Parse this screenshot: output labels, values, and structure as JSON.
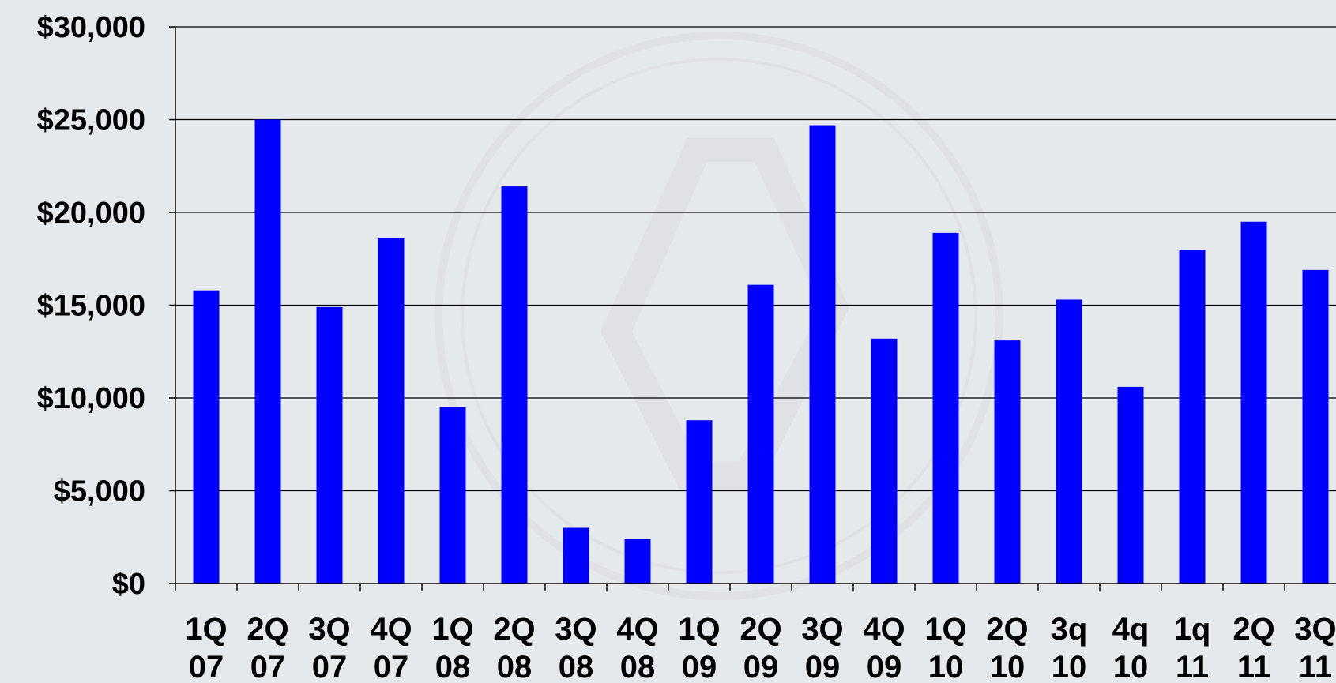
{
  "chart_data": {
    "type": "bar",
    "title": "",
    "xlabel": "",
    "ylabel": "",
    "ylim": [
      0,
      30000
    ],
    "grid": true,
    "legend": "none",
    "bar_color": "#0000ff",
    "gridline_color": "#000000",
    "background_color": "#e6e9ec",
    "y_ticks": [
      {
        "value": 0,
        "label": "$0"
      },
      {
        "value": 5000,
        "label": "$5,000"
      },
      {
        "value": 10000,
        "label": "$10,000"
      },
      {
        "value": 15000,
        "label": "$15,000"
      },
      {
        "value": 20000,
        "label": "$20,000"
      },
      {
        "value": 25000,
        "label": "$25,000"
      },
      {
        "value": 30000,
        "label": "$30,000"
      }
    ],
    "categories": [
      {
        "line1": "1Q",
        "line2": "07"
      },
      {
        "line1": "2Q",
        "line2": "07"
      },
      {
        "line1": "3Q",
        "line2": "07"
      },
      {
        "line1": "4Q",
        "line2": "07"
      },
      {
        "line1": "1Q",
        "line2": "08"
      },
      {
        "line1": "2Q",
        "line2": "08"
      },
      {
        "line1": "3Q",
        "line2": "08"
      },
      {
        "line1": "4Q",
        "line2": "08"
      },
      {
        "line1": "1Q",
        "line2": "09"
      },
      {
        "line1": "2Q",
        "line2": "09"
      },
      {
        "line1": "3Q",
        "line2": "09"
      },
      {
        "line1": "4Q",
        "line2": "09"
      },
      {
        "line1": "1Q",
        "line2": "10"
      },
      {
        "line1": "2Q",
        "line2": "10"
      },
      {
        "line1": "3q",
        "line2": "10"
      },
      {
        "line1": "4q",
        "line2": "10"
      },
      {
        "line1": "1q",
        "line2": "11"
      },
      {
        "line1": "2Q",
        "line2": "11"
      },
      {
        "line1": "3Q",
        "line2": "11"
      }
    ],
    "values": [
      15800,
      25000,
      14900,
      18600,
      9500,
      21400,
      3000,
      2400,
      8800,
      16100,
      24700,
      13200,
      18900,
      13100,
      15300,
      10600,
      18000,
      19500,
      16900
    ]
  }
}
